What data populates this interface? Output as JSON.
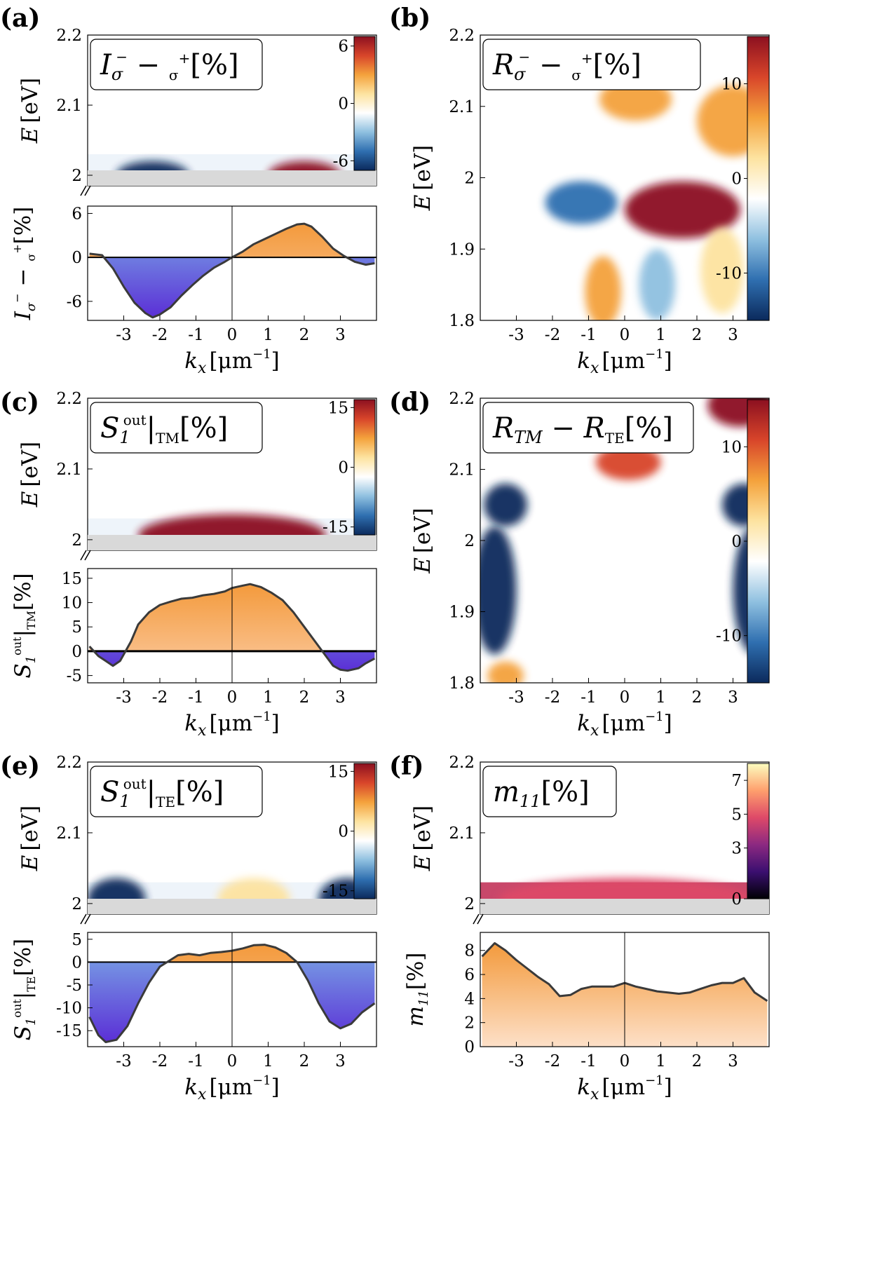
{
  "colors": {
    "blue": "#1f4f8f",
    "red": "#b2182b",
    "orange": "#f39a3c",
    "purple": "#5b2fd6",
    "break_gray": "#d9d9d9",
    "curve": "#3a3a3a"
  },
  "colorbars": {
    "diverging": [
      "#0b2a5c",
      "#2f6fb0",
      "#8fc0e0",
      "#ffffff",
      "#fde3a0",
      "#f4a23c",
      "#d8452a",
      "#8c1020"
    ],
    "inferno": [
      "#000004",
      "#3b0f70",
      "#8c2981",
      "#de4968",
      "#fe9f6d",
      "#fcfdbf"
    ]
  },
  "chart_data": [
    {
      "id": "a",
      "panel_label": "(a)",
      "type": "heatmap",
      "title": "I_σ− − I_σ+ [%]",
      "box_title": "I",
      "box_sub1": "σ",
      "box_sup1": "−",
      "box_minus": " − ",
      "box_sub2": "σ",
      "box_sup2": "+",
      "box_unit": "[%]",
      "ylabel": "E [eV]",
      "ylabel_var": "E",
      "ylabel_unit": "[eV]",
      "y_ticks": [
        "2.2",
        "2.1",
        "2"
      ],
      "y_range": [
        1.985,
        2.2
      ],
      "colorbar_ticks": [
        "6",
        "0",
        "-6"
      ],
      "colorbar_range": [
        -7,
        7
      ],
      "spots": [
        {
          "kx": -2.2,
          "E": 2.0,
          "value": -7,
          "wx": 1.0,
          "wy": 0.02
        },
        {
          "kx": 2.0,
          "E": 2.0,
          "value": 6,
          "wx": 1.0,
          "wy": 0.02
        }
      ]
    },
    {
      "id": "a_line",
      "type": "area",
      "ylabel": "I_σ− − I_σ+ [%]",
      "ylabel_main": "I",
      "ylabel_sub1": "σ",
      "ylabel_sup1": "−",
      "ylabel_minus": " − ",
      "ylabel_sub2": "σ",
      "ylabel_sup2": "+",
      "ylabel_unit": "[%]",
      "y_ticks": [
        "6",
        "0",
        "-6"
      ],
      "y_range": [
        -8.6,
        7.0
      ],
      "x_ticks": [
        "-3",
        "-2",
        "-1",
        "0",
        "1",
        "2",
        "3"
      ],
      "xlabel": "k_x [μm⁻¹]",
      "xlabel_var": "k",
      "xlabel_sub": "x",
      "xlabel_unit": "[μm",
      "xlabel_sup": "−1",
      "xlabel_close": "]",
      "x": [
        -3.95,
        -3.6,
        -3.3,
        -3.0,
        -2.7,
        -2.4,
        -2.2,
        -2.0,
        -1.7,
        -1.4,
        -1.1,
        -0.8,
        -0.5,
        -0.2,
        0.0,
        0.3,
        0.6,
        0.9,
        1.2,
        1.5,
        1.8,
        2.0,
        2.2,
        2.5,
        2.8,
        3.1,
        3.4,
        3.7,
        3.95
      ],
      "y": [
        0.5,
        0.3,
        -1.5,
        -4.0,
        -6.2,
        -7.6,
        -8.2,
        -7.8,
        -6.8,
        -5.2,
        -3.8,
        -2.5,
        -1.4,
        -0.6,
        0.0,
        0.8,
        1.8,
        2.5,
        3.2,
        3.9,
        4.5,
        4.6,
        4.2,
        2.8,
        1.2,
        0.2,
        -0.6,
        -1.0,
        -0.8
      ]
    },
    {
      "id": "b",
      "panel_label": "(b)",
      "type": "heatmap",
      "title": "R_σ− − R_σ+ [%]",
      "box_title": "R",
      "box_sub1": "σ",
      "box_sup1": "−",
      "box_minus": " − ",
      "box_sub2": "σ",
      "box_sup2": "+",
      "box_unit": "[%]",
      "ylabel": "E [eV]",
      "ylabel_var": "E",
      "ylabel_unit": "[eV]",
      "y_ticks": [
        "2.2",
        "2.1",
        "2",
        "1.9",
        "1.8"
      ],
      "y_range": [
        1.8,
        2.2
      ],
      "x_ticks": [
        "-3",
        "-2",
        "-1",
        "0",
        "1",
        "2",
        "3"
      ],
      "xlabel": "k_x [μm⁻¹]",
      "xlabel_var": "k",
      "xlabel_sub": "x",
      "xlabel_unit": "[μm",
      "xlabel_sup": "−1",
      "xlabel_close": "]",
      "colorbar_ticks": [
        "10",
        "0",
        "-10"
      ],
      "colorbar_range": [
        -15,
        15
      ],
      "spots": [
        {
          "kx": -1.2,
          "E": 1.965,
          "value": -11,
          "wx": 1.0,
          "wy": 0.03
        },
        {
          "kx": 1.6,
          "E": 1.955,
          "value": 15,
          "wx": 1.6,
          "wy": 0.04
        },
        {
          "kx": 0.3,
          "E": 2.11,
          "value": 6,
          "wx": 1.0,
          "wy": 0.03
        },
        {
          "kx": 3.0,
          "E": 2.08,
          "value": 5,
          "wx": 1.0,
          "wy": 0.05
        },
        {
          "kx": -0.6,
          "E": 1.84,
          "value": 7,
          "wx": 0.5,
          "wy": 0.05
        },
        {
          "kx": 0.9,
          "E": 1.85,
          "value": -5,
          "wx": 0.5,
          "wy": 0.05
        },
        {
          "kx": 2.7,
          "E": 1.87,
          "value": 4,
          "wx": 0.6,
          "wy": 0.06
        }
      ]
    },
    {
      "id": "c",
      "panel_label": "(c)",
      "type": "heatmap",
      "title": "S_1^out|_TM [%]",
      "box_title": "S",
      "box_sub1": "1",
      "box_sup1": "out",
      "box_bar": "|",
      "box_sub2": "TM",
      "box_unit": "[%]",
      "ylabel": "E [eV]",
      "ylabel_var": "E",
      "ylabel_unit": "[eV]",
      "y_ticks": [
        "2.2",
        "2.1",
        "2"
      ],
      "y_range": [
        1.985,
        2.2
      ],
      "colorbar_ticks": [
        "15",
        "0",
        "-15"
      ],
      "colorbar_range": [
        -17,
        17
      ],
      "spots": [
        {
          "kx": 0.0,
          "E": 2.006,
          "value": 15,
          "wx": 2.6,
          "wy": 0.03
        }
      ]
    },
    {
      "id": "c_line",
      "type": "area",
      "ylabel": "S_1^out|_TM [%]",
      "ylabel_main": "S",
      "ylabel_sub1": "1",
      "ylabel_sup1": "out",
      "ylabel_bar": "|",
      "ylabel_sub2": "TM",
      "ylabel_unit": "[%]",
      "y_ticks": [
        "15",
        "10",
        "5",
        "0",
        "-5"
      ],
      "y_range": [
        -6.5,
        17.0
      ],
      "x_ticks": [
        "-3",
        "-2",
        "-1",
        "0",
        "1",
        "2",
        "3"
      ],
      "xlabel": "k_x [μm⁻¹]",
      "xlabel_var": "k",
      "xlabel_sub": "x",
      "xlabel_unit": "[μm",
      "xlabel_sup": "−1",
      "xlabel_close": "]",
      "x": [
        -3.95,
        -3.7,
        -3.5,
        -3.3,
        -3.1,
        -2.8,
        -2.6,
        -2.3,
        -2.0,
        -1.7,
        -1.4,
        -1.1,
        -0.8,
        -0.5,
        -0.2,
        0.0,
        0.3,
        0.5,
        0.8,
        1.1,
        1.4,
        1.7,
        2.0,
        2.3,
        2.6,
        2.8,
        3.0,
        3.2,
        3.5,
        3.7,
        3.95
      ],
      "y": [
        1.0,
        -1.0,
        -2.0,
        -3.0,
        -2.0,
        2.0,
        5.5,
        8.0,
        9.5,
        10.2,
        10.8,
        11.0,
        11.5,
        11.8,
        12.3,
        13.0,
        13.5,
        13.8,
        13.2,
        12.0,
        10.5,
        8.0,
        5.0,
        2.0,
        -1.0,
        -3.0,
        -3.8,
        -4.0,
        -3.5,
        -2.5,
        -1.5
      ]
    },
    {
      "id": "d",
      "panel_label": "(d)",
      "type": "heatmap",
      "title": "R_TM − R_TE [%]",
      "box_title": "R",
      "box_sub1": "TM",
      "box_minus": " − R",
      "box_sub2": "TE",
      "box_unit": "[%]",
      "ylabel": "E [eV]",
      "ylabel_var": "E",
      "ylabel_unit": "[eV]",
      "y_ticks": [
        "2.2",
        "2.1",
        "2",
        "1.9",
        "1.8"
      ],
      "y_range": [
        1.8,
        2.2
      ],
      "x_ticks": [
        "-3",
        "-2",
        "-1",
        "0",
        "1",
        "2",
        "3"
      ],
      "xlabel": "k_x [μm⁻¹]",
      "xlabel_var": "k",
      "xlabel_sub": "x",
      "xlabel_unit": "[μm",
      "xlabel_sup": "−1",
      "xlabel_close": "]",
      "colorbar_ticks": [
        "10",
        "0",
        "-10"
      ],
      "colorbar_range": [
        -15,
        15
      ],
      "spots": [
        {
          "kx": -3.3,
          "E": 2.05,
          "value": -15,
          "wx": 0.6,
          "wy": 0.03
        },
        {
          "kx": 3.3,
          "E": 2.05,
          "value": -15,
          "wx": 0.6,
          "wy": 0.03
        },
        {
          "kx": -3.6,
          "E": 1.93,
          "value": -15,
          "wx": 0.6,
          "wy": 0.09
        },
        {
          "kx": 3.6,
          "E": 1.93,
          "value": -15,
          "wx": 0.6,
          "wy": 0.09
        },
        {
          "kx": 0.1,
          "E": 2.11,
          "value": 11,
          "wx": 0.9,
          "wy": 0.025
        },
        {
          "kx": 3.2,
          "E": 2.19,
          "value": 14,
          "wx": 0.9,
          "wy": 0.03
        },
        {
          "kx": 0.0,
          "E": 1.9,
          "value": -4,
          "wx": 1.2,
          "wy": 0.12
        },
        {
          "kx": -3.3,
          "E": 1.81,
          "value": 6,
          "wx": 0.5,
          "wy": 0.02
        }
      ]
    },
    {
      "id": "e",
      "panel_label": "(e)",
      "type": "heatmap",
      "title": "S_1^out|_TE [%]",
      "box_title": "S",
      "box_sub1": "1",
      "box_sup1": "out",
      "box_bar": "|",
      "box_sub2": "TE",
      "box_unit": "[%]",
      "ylabel": "E [eV]",
      "ylabel_var": "E",
      "ylabel_unit": "[eV]",
      "y_ticks": [
        "2.2",
        "2.1",
        "2"
      ],
      "y_range": [
        1.985,
        2.2
      ],
      "colorbar_ticks": [
        "15",
        "0",
        "-15"
      ],
      "colorbar_range": [
        -17,
        17
      ],
      "spots": [
        {
          "kx": -3.2,
          "E": 2.006,
          "value": -17,
          "wx": 0.8,
          "wy": 0.03
        },
        {
          "kx": 3.2,
          "E": 2.006,
          "value": -17,
          "wx": 0.8,
          "wy": 0.03
        },
        {
          "kx": 0.6,
          "E": 2.006,
          "value": 4,
          "wx": 1.0,
          "wy": 0.03
        }
      ]
    },
    {
      "id": "e_line",
      "type": "area",
      "ylabel": "S_1^out|_TE [%]",
      "ylabel_main": "S",
      "ylabel_sub1": "1",
      "ylabel_sup1": "out",
      "ylabel_bar": "|",
      "ylabel_sub2": "TE",
      "ylabel_unit": "[%]",
      "y_ticks": [
        "5",
        "0",
        "-5",
        "-10",
        "-15"
      ],
      "y_range": [
        -18.5,
        6.5
      ],
      "x_ticks": [
        "-3",
        "-2",
        "-1",
        "0",
        "1",
        "2",
        "3"
      ],
      "xlabel": "k_x [μm⁻¹]",
      "xlabel_var": "k",
      "xlabel_sub": "x",
      "xlabel_unit": "[μm",
      "xlabel_sup": "−1",
      "xlabel_close": "]",
      "x": [
        -3.95,
        -3.7,
        -3.5,
        -3.2,
        -2.9,
        -2.6,
        -2.3,
        -2.0,
        -1.8,
        -1.5,
        -1.2,
        -0.9,
        -0.6,
        -0.3,
        0.0,
        0.3,
        0.6,
        0.9,
        1.2,
        1.5,
        1.8,
        2.1,
        2.4,
        2.7,
        3.0,
        3.3,
        3.6,
        3.95
      ],
      "y": [
        -12.0,
        -16.0,
        -17.5,
        -17.0,
        -14.0,
        -9.0,
        -4.5,
        -1.0,
        0.0,
        1.5,
        1.8,
        1.5,
        2.0,
        2.2,
        2.5,
        3.0,
        3.7,
        3.8,
        3.2,
        2.0,
        0.0,
        -4.0,
        -9.0,
        -13.0,
        -14.5,
        -13.5,
        -11.0,
        -9.0
      ]
    },
    {
      "id": "f",
      "panel_label": "(f)",
      "type": "heatmap",
      "title": "m_11 [%]",
      "box_title": "m",
      "box_sub1": "11",
      "box_unit": "[%]",
      "ylabel": "E [eV]",
      "ylabel_var": "E",
      "ylabel_unit": "[eV]",
      "y_ticks": [
        "2.2",
        "2.1",
        "2"
      ],
      "y_range": [
        1.985,
        2.2
      ],
      "colorbar_ticks": [
        "7",
        "5",
        "3",
        "0"
      ],
      "colorbar_range": [
        0,
        8
      ],
      "spots": [
        {
          "kx": 0.0,
          "E": 2.006,
          "value": 4.5,
          "wx": 3.5,
          "wy": 0.03
        }
      ]
    },
    {
      "id": "f_line",
      "type": "area",
      "ylabel": "m_11 [%]",
      "ylabel_main": "m",
      "ylabel_sub1": "11",
      "ylabel_unit": "[%]",
      "y_ticks": [
        "8",
        "6",
        "4",
        "2",
        "0"
      ],
      "y_range": [
        0,
        9.5
      ],
      "x_ticks": [
        "-3",
        "-2",
        "-1",
        "0",
        "1",
        "2",
        "3"
      ],
      "xlabel": "k_x [μm⁻¹]",
      "xlabel_var": "k",
      "xlabel_sub": "x",
      "xlabel_unit": "[μm",
      "xlabel_sup": "−1",
      "xlabel_close": "]",
      "x": [
        -3.95,
        -3.6,
        -3.3,
        -3.0,
        -2.7,
        -2.4,
        -2.1,
        -1.8,
        -1.5,
        -1.2,
        -0.9,
        -0.6,
        -0.3,
        0.0,
        0.3,
        0.6,
        0.9,
        1.2,
        1.5,
        1.8,
        2.1,
        2.4,
        2.7,
        3.0,
        3.3,
        3.6,
        3.95
      ],
      "y": [
        7.5,
        8.6,
        8.0,
        7.2,
        6.5,
        5.8,
        5.2,
        4.2,
        4.3,
        4.8,
        5.0,
        5.0,
        5.0,
        5.3,
        5.0,
        4.8,
        4.6,
        4.5,
        4.4,
        4.5,
        4.8,
        5.1,
        5.3,
        5.3,
        5.7,
        4.5,
        3.8
      ]
    }
  ]
}
